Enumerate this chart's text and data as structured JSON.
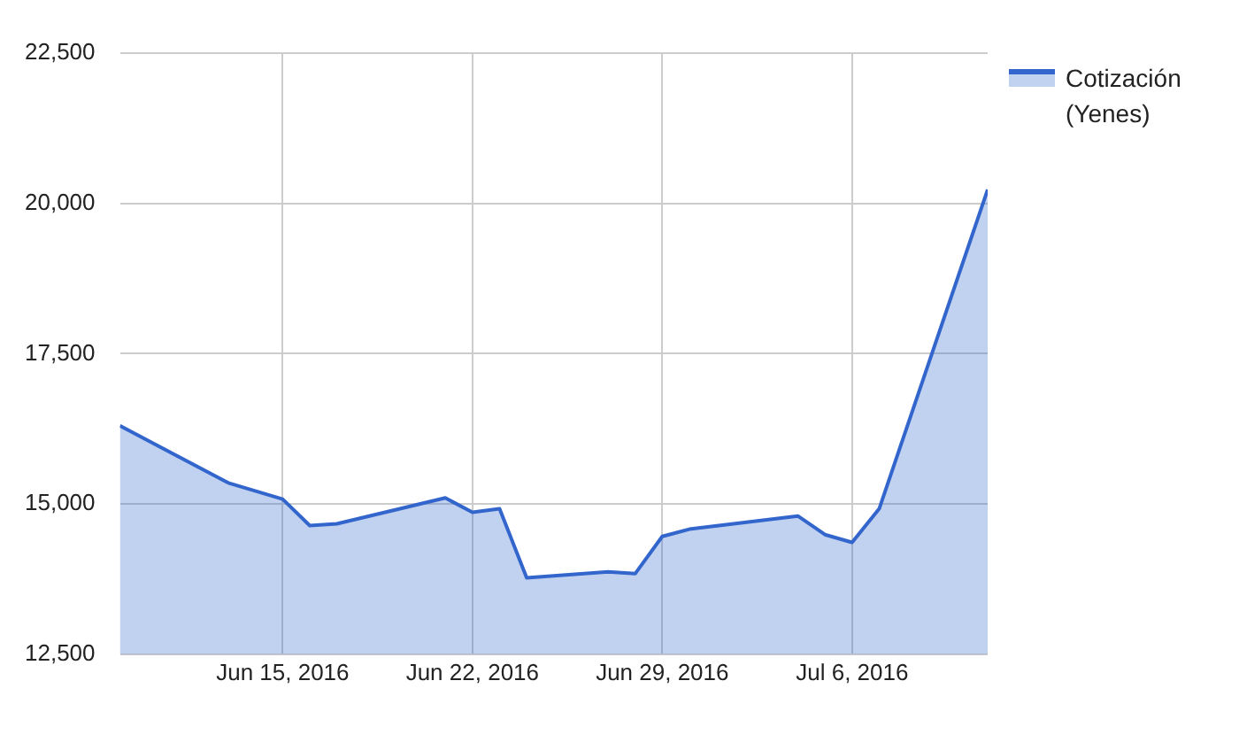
{
  "chart_data": {
    "type": "area",
    "x": [
      "2016-06-09",
      "2016-06-13",
      "2016-06-15",
      "2016-06-16",
      "2016-06-17",
      "2016-06-21",
      "2016-06-22",
      "2016-06-23",
      "2016-06-24",
      "2016-06-27",
      "2016-06-28",
      "2016-06-29",
      "2016-06-30",
      "2016-07-04",
      "2016-07-05",
      "2016-07-06",
      "2016-07-07",
      "2016-07-11"
    ],
    "series": [
      {
        "name": "Cotización (Yenes)",
        "color": "#3366cc",
        "values": [
          16300,
          15350,
          15080,
          14640,
          14670,
          15100,
          14860,
          14920,
          13770,
          13870,
          13840,
          14460,
          14580,
          14800,
          14490,
          14360,
          14920,
          20230
        ]
      }
    ],
    "xlim": [
      "2016-06-09",
      "2016-07-11"
    ],
    "xticks": [
      {
        "value": "2016-06-15",
        "label": "Jun 15, 2016"
      },
      {
        "value": "2016-06-22",
        "label": "Jun 22, 2016"
      },
      {
        "value": "2016-06-29",
        "label": "Jun 29, 2016"
      },
      {
        "value": "2016-07-06",
        "label": "Jul 6, 2016"
      }
    ],
    "ylim": [
      12500,
      22500
    ],
    "yticks": [
      {
        "value": 12500,
        "label": "12,500"
      },
      {
        "value": 15000,
        "label": "15,000"
      },
      {
        "value": 17500,
        "label": "17,500"
      },
      {
        "value": 20000,
        "label": "20,000"
      },
      {
        "value": 22500,
        "label": "22,500"
      }
    ],
    "grid": true,
    "legend": "top right"
  }
}
